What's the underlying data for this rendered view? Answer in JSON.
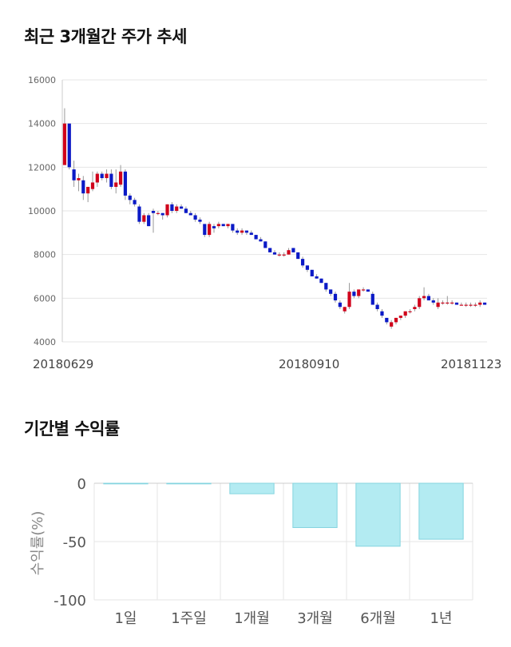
{
  "section1": {
    "title": "최근 3개월간 주가 추세"
  },
  "section2": {
    "title": "기간별 수익률"
  },
  "colors": {
    "up": "#d0021b",
    "down": "#0b1ac6",
    "bar_fill": "#b3ebf2",
    "bar_stroke": "#84d4df",
    "grid": "#e6e6e6"
  },
  "chart_data": [
    {
      "type": "candlestick",
      "title": "최근 3개월간 주가 추세",
      "ylim": [
        4000,
        16000
      ],
      "yticks": [
        "16000",
        "14000",
        "12000",
        "10000",
        "8000",
        "6000",
        "4000"
      ],
      "xtick_labels": [
        "20180629",
        "20180910",
        "20181123"
      ],
      "grid": true,
      "ohlc": [
        [
          12100,
          14700,
          12100,
          14000
        ],
        [
          14000,
          14000,
          11900,
          12000
        ],
        [
          11900,
          12300,
          11100,
          11400
        ],
        [
          11400,
          11700,
          10900,
          11500
        ],
        [
          11400,
          11600,
          10500,
          10800
        ],
        [
          10800,
          11000,
          10400,
          11100
        ],
        [
          11000,
          11800,
          10900,
          11300
        ],
        [
          11300,
          11800,
          11100,
          11700
        ],
        [
          11700,
          11800,
          11400,
          11500
        ],
        [
          11500,
          11900,
          11300,
          11700
        ],
        [
          11700,
          11900,
          11000,
          11100
        ],
        [
          11100,
          11900,
          10800,
          11300
        ],
        [
          11200,
          12100,
          11100,
          11800
        ],
        [
          11800,
          11900,
          10500,
          10700
        ],
        [
          10700,
          10800,
          10300,
          10500
        ],
        [
          10500,
          10600,
          10200,
          10300
        ],
        [
          10200,
          10300,
          9400,
          9500
        ],
        [
          9500,
          9900,
          9400,
          9800
        ],
        [
          9800,
          9900,
          9300,
          9300
        ],
        [
          10000,
          10100,
          9000,
          9900
        ],
        [
          9900,
          10000,
          9800,
          9900
        ],
        [
          9900,
          9900,
          9600,
          9800
        ],
        [
          9800,
          10300,
          9700,
          10300
        ],
        [
          10300,
          10400,
          9900,
          10000
        ],
        [
          10000,
          10300,
          9900,
          10200
        ],
        [
          10200,
          10300,
          10100,
          10100
        ],
        [
          10100,
          10200,
          9900,
          9900
        ],
        [
          9900,
          10000,
          9800,
          9800
        ],
        [
          9800,
          9900,
          9500,
          9600
        ],
        [
          9600,
          9700,
          9400,
          9500
        ],
        [
          9400,
          9400,
          8800,
          8900
        ],
        [
          8900,
          9500,
          8800,
          9400
        ],
        [
          9300,
          9400,
          9000,
          9200
        ],
        [
          9300,
          9500,
          9200,
          9400
        ],
        [
          9400,
          9400,
          9300,
          9300
        ],
        [
          9300,
          9400,
          9200,
          9400
        ],
        [
          9400,
          9400,
          9000,
          9100
        ],
        [
          9100,
          9200,
          8900,
          9000
        ],
        [
          9000,
          9200,
          8900,
          9100
        ],
        [
          9100,
          9100,
          8900,
          9000
        ],
        [
          9000,
          9100,
          8900,
          8900
        ],
        [
          8900,
          8900,
          8700,
          8700
        ],
        [
          8700,
          8800,
          8600,
          8600
        ],
        [
          8600,
          8600,
          8300,
          8300
        ],
        [
          8300,
          8300,
          8100,
          8100
        ],
        [
          8100,
          8200,
          8000,
          8000
        ],
        [
          8000,
          8100,
          7900,
          8000
        ],
        [
          8000,
          8100,
          7900,
          8000
        ],
        [
          8000,
          8300,
          8000,
          8200
        ],
        [
          8300,
          8300,
          8100,
          8100
        ],
        [
          8100,
          8100,
          7800,
          7800
        ],
        [
          7800,
          7900,
          7400,
          7500
        ],
        [
          7500,
          7500,
          7200,
          7300
        ],
        [
          7300,
          7300,
          7000,
          7000
        ],
        [
          7000,
          7100,
          6900,
          6900
        ],
        [
          6900,
          6900,
          6700,
          6700
        ],
        [
          6700,
          6700,
          6300,
          6400
        ],
        [
          6400,
          6400,
          6100,
          6200
        ],
        [
          6200,
          6300,
          5800,
          5900
        ],
        [
          5800,
          5900,
          5500,
          5600
        ],
        [
          5400,
          5600,
          5300,
          5600
        ],
        [
          5600,
          6700,
          5500,
          6300
        ],
        [
          6300,
          6400,
          6000,
          6100
        ],
        [
          6100,
          6400,
          6000,
          6400
        ],
        [
          6400,
          6500,
          6300,
          6400
        ],
        [
          6400,
          6400,
          6300,
          6300
        ],
        [
          6200,
          6300,
          5700,
          5700
        ],
        [
          5700,
          5800,
          5400,
          5500
        ],
        [
          5400,
          5500,
          5100,
          5200
        ],
        [
          5100,
          5100,
          4800,
          4900
        ],
        [
          4700,
          5000,
          4600,
          4900
        ],
        [
          4900,
          5100,
          4800,
          5100
        ],
        [
          5100,
          5200,
          5000,
          5200
        ],
        [
          5200,
          5400,
          5100,
          5400
        ],
        [
          5400,
          5500,
          5300,
          5400
        ],
        [
          5500,
          5700,
          5400,
          5600
        ],
        [
          5600,
          6100,
          5500,
          6000
        ],
        [
          6000,
          6500,
          5900,
          6100
        ],
        [
          6100,
          6200,
          5900,
          5900
        ],
        [
          5900,
          6000,
          5700,
          5800
        ],
        [
          5600,
          6000,
          5500,
          5800
        ],
        [
          5800,
          5900,
          5700,
          5800
        ],
        [
          5800,
          6100,
          5700,
          5800
        ],
        [
          5800,
          5900,
          5700,
          5800
        ],
        [
          5800,
          5800,
          5700,
          5700
        ],
        [
          5700,
          5800,
          5700,
          5700
        ],
        [
          5700,
          5800,
          5600,
          5700
        ],
        [
          5700,
          5800,
          5600,
          5700
        ],
        [
          5700,
          5800,
          5600,
          5700
        ],
        [
          5700,
          5900,
          5600,
          5800
        ],
        [
          5800,
          5800,
          5700,
          5700
        ]
      ]
    },
    {
      "type": "bar",
      "title": "기간별 수익률",
      "ylabel": "수익률(%)",
      "ylim": [
        -100,
        0
      ],
      "yticks": [
        "0",
        "-50",
        "-100"
      ],
      "categories": [
        "1일",
        "1주일",
        "1개월",
        "3개월",
        "6개월",
        "1년"
      ],
      "values": [
        0,
        -0.5,
        -9,
        -38,
        -54,
        -48
      ],
      "grid": true
    }
  ]
}
